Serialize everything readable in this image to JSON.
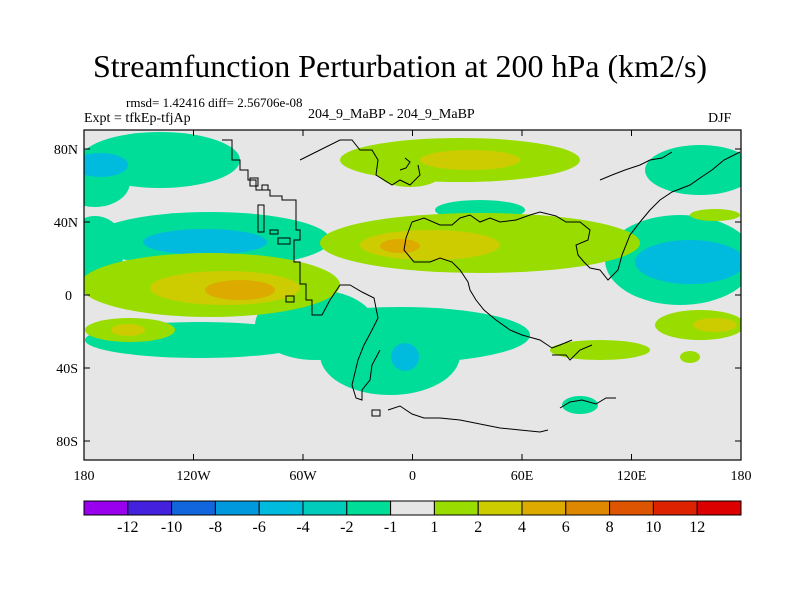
{
  "title": "Streamfunction Perturbation at 200 hPa (km2/s)",
  "header": {
    "rmsd": "rmsd= 1.42416 diff= 2.56706e-08",
    "experiment": "Expt = tfkEp-tfjAp",
    "center": "204_9_MaBP - 204_9_MaBP",
    "season": "DJF"
  },
  "map": {
    "lat_labels": [
      "80N",
      "40N",
      "0",
      "40S",
      "80S"
    ],
    "lon_labels": [
      "180",
      "120W",
      "60W",
      "0",
      "60E",
      "120E",
      "180"
    ],
    "background": "#e6e6e6"
  },
  "colorbar": {
    "labels": [
      "-12",
      "-10",
      "-8",
      "-6",
      "-4",
      "-2",
      "-1",
      "1",
      "2",
      "4",
      "6",
      "8",
      "10",
      "12"
    ],
    "colors": [
      "#9900ee",
      "#4422dd",
      "#1166dd",
      "#0099dd",
      "#00bbdd",
      "#00ccbb",
      "#00dd99",
      "#e6e6e6",
      "#99dd00",
      "#cccc00",
      "#ddaa00",
      "#dd8800",
      "#dd5500",
      "#dd2200",
      "#dd0000"
    ]
  }
}
